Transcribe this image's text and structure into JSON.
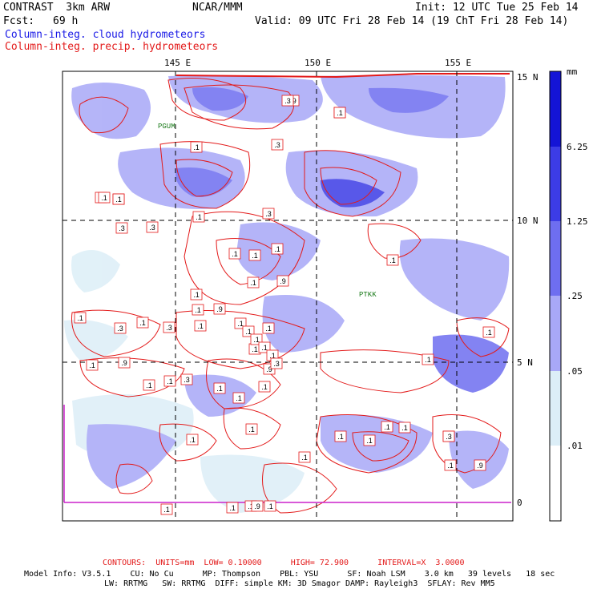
{
  "header": {
    "model": "CONTRAST  3km ARW",
    "org": "NCAR/MMM",
    "init": "Init: 12 UTC Tue 25 Feb 14",
    "fcst_label": "Fcst:",
    "fcst_value": "69 h",
    "valid": "Valid: 09 UTC Fri 28 Feb 14 (19 ChT Fri 28 Feb 14)",
    "legend_cloud": "Column-integ. cloud hydrometeors",
    "legend_precip": "Column-integ. precip. hydrometeors"
  },
  "map": {
    "lon_labels": [
      "145 E",
      "150 E",
      "155 E"
    ],
    "lat_labels": [
      "15 N",
      "10 N",
      "5 N",
      "0"
    ],
    "station_labels": [
      "PGUM",
      "PTKK"
    ],
    "contour_labels": [
      ".1",
      ".1",
      ".3",
      ".3",
      ".1",
      ".3",
      ".1",
      ".3",
      ".1",
      ".9",
      ".1",
      ".1",
      ".3",
      ".1",
      ".9",
      ".1",
      ".1",
      ".3",
      ".1",
      ".1",
      ".1",
      ".9",
      ".1",
      ".1",
      ".1",
      ".3",
      ".1",
      ".9",
      ".1",
      ".9",
      ".1",
      ".1",
      ".1",
      ".1",
      ".1",
      ".1",
      ".1",
      ".1",
      ".1",
      ".1",
      ".1",
      ".1",
      ".3",
      ".1",
      ".9",
      ".1",
      ".3",
      ".1",
      ".1",
      ".1",
      ".1",
      ".9",
      ".1",
      ".1",
      ".3",
      ".1",
      ".1",
      ".1",
      ".1",
      ".1",
      ".1",
      ".1",
      ".3"
    ]
  },
  "colorbar": {
    "unit": "mm",
    "tick_labels": [
      "6.25",
      "1.25",
      ".25",
      ".05",
      ".01"
    ],
    "colors": [
      "#1414d6",
      "#3c3ce6",
      "#6e6ef0",
      "#a8a8f7",
      "#dceef7",
      "#ffffff"
    ]
  },
  "footer": {
    "contours": "CONTOURS:  UNITS=mm  LOW= 0.10000      HIGH= 72.900      INTERVAL=X  3.0000",
    "line1": "Model Info: V3.5.1    CU: No Cu      MP: Thompson    PBL: YSU      SF: Noah LSM    3.0 km   39 levels   18 sec",
    "line2": "LW: RRTMG   SW: RRTMG  DIFF: simple KM: 3D Smagor DAMP: Rayleigh3  SFLAY: Rev MM5"
  }
}
